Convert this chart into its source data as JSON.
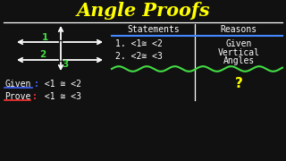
{
  "title": "Angle Proofs",
  "title_color": "#FFFF00",
  "bg_color": "#111111",
  "line_color": "#FFFFFF",
  "green_color": "#44DD44",
  "blue_color": "#4466FF",
  "red_color": "#FF3333",
  "given_colon_color": "#4466FF",
  "prove_colon_color": "#FF3333",
  "statements_header": "Statements",
  "reasons_header": "Reasons",
  "stmt1": "1. <1≅ <2",
  "stmt2": "2. <2≅ <3",
  "reason1": "Given",
  "reason2a": "Vertical",
  "reason2b": "Angles",
  "reason3": "?",
  "given_label": "Given",
  "prove_label": "Prove",
  "given_expr": " <1 ≅ <2",
  "prove_expr": " <1 ≅ <3",
  "angle1_label": "1",
  "angle2_label": "2",
  "angle3_label": "3"
}
